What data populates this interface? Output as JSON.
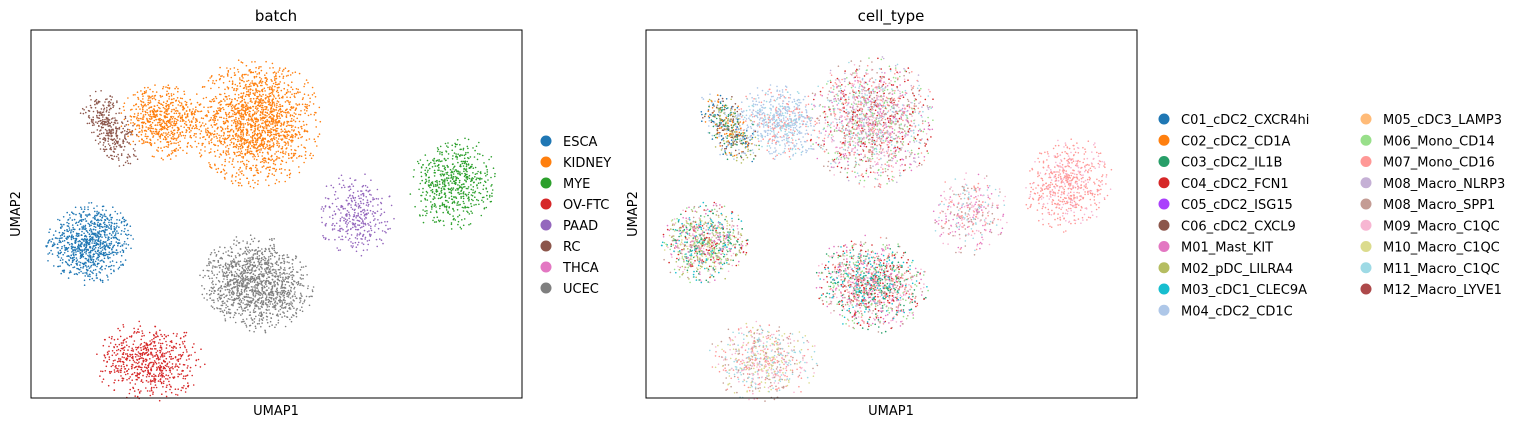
{
  "chart_data": [
    {
      "type": "scatter",
      "title": "batch",
      "xlabel": "UMAP1",
      "ylabel": "UMAP2",
      "grid": false,
      "ticks": false,
      "legend": "right",
      "series": [
        {
          "name": "ESCA",
          "color": "#1f77b4",
          "clusters": [
            {
              "cx": 0.12,
              "cy": 0.42,
              "rx": 0.18,
              "ry": 0.23,
              "rot": -10,
              "n": 900
            }
          ]
        },
        {
          "name": "KIDNEY",
          "color": "#ff7f0e",
          "clusters": [
            {
              "cx": 0.46,
              "cy": 0.75,
              "rx": 0.27,
              "ry": 0.36,
              "rot": 0,
              "n": 1700
            },
            {
              "cx": 0.27,
              "cy": 0.75,
              "rx": 0.18,
              "ry": 0.21,
              "rot": 20,
              "n": 650
            }
          ]
        },
        {
          "name": "MYE",
          "color": "#2ca02c",
          "clusters": [
            {
              "cx": 0.86,
              "cy": 0.58,
              "rx": 0.18,
              "ry": 0.26,
              "rot": -10,
              "n": 600
            }
          ]
        },
        {
          "name": "OV-FTC",
          "color": "#d62728",
          "clusters": [
            {
              "cx": 0.24,
              "cy": 0.1,
              "rx": 0.23,
              "ry": 0.22,
              "rot": -20,
              "n": 650
            }
          ]
        },
        {
          "name": "PAAD",
          "color": "#9467bd",
          "clusters": [
            {
              "cx": 0.66,
              "cy": 0.5,
              "rx": 0.16,
              "ry": 0.23,
              "rot": 0,
              "n": 350
            }
          ]
        },
        {
          "name": "RC",
          "color": "#8c564b",
          "clusters": [
            {
              "cx": 0.16,
              "cy": 0.73,
              "rx": 0.1,
              "ry": 0.23,
              "rot": 20,
              "n": 350
            }
          ]
        },
        {
          "name": "THCA",
          "color": "#e377c2",
          "clusters": []
        },
        {
          "name": "UCEC",
          "color": "#7f7f7f",
          "clusters": [
            {
              "cx": 0.46,
              "cy": 0.31,
              "rx": 0.23,
              "ry": 0.27,
              "rot": 15,
              "n": 1300
            }
          ]
        }
      ]
    },
    {
      "type": "scatter",
      "title": "cell_type",
      "xlabel": "UMAP1",
      "ylabel": "UMAP2",
      "grid": false,
      "ticks": false,
      "legend": "right",
      "series": [
        {
          "name": "C01_cDC2_CXCR4hi",
          "color": "#1f77b4"
        },
        {
          "name": "C02_cDC2_CD1A",
          "color": "#ff7f0e"
        },
        {
          "name": "C03_cDC2_IL1B",
          "color": "#279e68"
        },
        {
          "name": "C04_cDC2_FCN1",
          "color": "#d62728"
        },
        {
          "name": "C05_cDC2_ISG15",
          "color": "#aa40fc"
        },
        {
          "name": "C06_cDC2_CXCL9",
          "color": "#8c564b"
        },
        {
          "name": "M01_Mast_KIT",
          "color": "#e377c2"
        },
        {
          "name": "M02_pDC_LILRA4",
          "color": "#b5bd61"
        },
        {
          "name": "M03_cDC1_CLEC9A",
          "color": "#17becf"
        },
        {
          "name": "M04_cDC2_CD1C",
          "color": "#aec7e8"
        },
        {
          "name": "M05_cDC3_LAMP3",
          "color": "#ffbb78"
        },
        {
          "name": "M06_Mono_CD14",
          "color": "#98df8a"
        },
        {
          "name": "M07_Mono_CD16",
          "color": "#ff9896"
        },
        {
          "name": "M08_Macro_NLRP3",
          "color": "#c5b0d5"
        },
        {
          "name": "M08_Macro_SPP1",
          "color": "#c49c94"
        },
        {
          "name": "M09_Macro_C1QC",
          "color": "#f7b6d2"
        },
        {
          "name": "M10_Macro_C1QC",
          "color": "#dbdb8d"
        },
        {
          "name": "M11_Macro_C1QC",
          "color": "#9edae5"
        },
        {
          "name": "M12_Macro_LYVE1",
          "color": "#ad494a"
        }
      ],
      "clusters": [
        {
          "cx": 0.46,
          "cy": 0.75,
          "rx": 0.27,
          "ry": 0.36,
          "rot": 0,
          "n": 1700,
          "mix": [
            "M07_Mono_CD16",
            "M08_Macro_SPP1",
            "M06_Mono_CD14",
            "M09_Macro_C1QC",
            "C04_cDC2_FCN1",
            "M01_Mast_KIT",
            "M11_Macro_C1QC",
            "M08_Macro_NLRP3"
          ]
        },
        {
          "cx": 0.27,
          "cy": 0.75,
          "rx": 0.18,
          "ry": 0.21,
          "rot": 20,
          "n": 650,
          "mix": [
            "M04_cDC2_CD1C",
            "M04_cDC2_CD1C",
            "M04_cDC2_CD1C",
            "M11_Macro_C1QC",
            "M07_Mono_CD16"
          ]
        },
        {
          "cx": 0.17,
          "cy": 0.73,
          "rx": 0.1,
          "ry": 0.23,
          "rot": 20,
          "n": 450,
          "mix": [
            "C01_cDC2_CXCR4hi",
            "C03_cDC2_IL1B",
            "C06_cDC2_CXCL9",
            "C02_cDC2_CD1A",
            "M04_cDC2_CD1C",
            "M02_pDC_LILRA4"
          ]
        },
        {
          "cx": 0.12,
          "cy": 0.42,
          "rx": 0.18,
          "ry": 0.23,
          "rot": -10,
          "n": 900,
          "mix": [
            "M02_pDC_LILRA4",
            "M10_Macro_C1QC",
            "M08_Macro_SPP1",
            "M09_Macro_C1QC",
            "C03_cDC2_IL1B",
            "M03_cDC1_CLEC9A",
            "M06_Mono_CD14",
            "C04_cDC2_FCN1",
            "M01_Mast_KIT"
          ]
        },
        {
          "cx": 0.46,
          "cy": 0.31,
          "rx": 0.23,
          "ry": 0.27,
          "rot": 15,
          "n": 1300,
          "mix": [
            "M06_Mono_CD14",
            "M08_Macro_SPP1",
            "M01_Mast_KIT",
            "C03_cDC2_IL1B",
            "M07_Mono_CD16",
            "M03_cDC1_CLEC9A",
            "C04_cDC2_FCN1",
            "M09_Macro_C1QC"
          ]
        },
        {
          "cx": 0.66,
          "cy": 0.5,
          "rx": 0.16,
          "ry": 0.23,
          "rot": 0,
          "n": 350,
          "mix": [
            "M09_Macro_C1QC",
            "M08_Macro_SPP1",
            "M01_Mast_KIT",
            "M11_Macro_C1QC",
            "M07_Mono_CD16"
          ]
        },
        {
          "cx": 0.86,
          "cy": 0.58,
          "rx": 0.18,
          "ry": 0.26,
          "rot": -10,
          "n": 600,
          "mix": [
            "M07_Mono_CD16",
            "M07_Mono_CD16",
            "M09_Macro_C1QC",
            "M07_Mono_CD16"
          ]
        },
        {
          "cx": 0.24,
          "cy": 0.1,
          "rx": 0.23,
          "ry": 0.22,
          "rot": -20,
          "n": 650,
          "mix": [
            "M08_Macro_SPP1",
            "M09_Macro_C1QC",
            "M07_Mono_CD16",
            "M10_Macro_C1QC",
            "M11_Macro_C1QC"
          ]
        }
      ]
    }
  ]
}
